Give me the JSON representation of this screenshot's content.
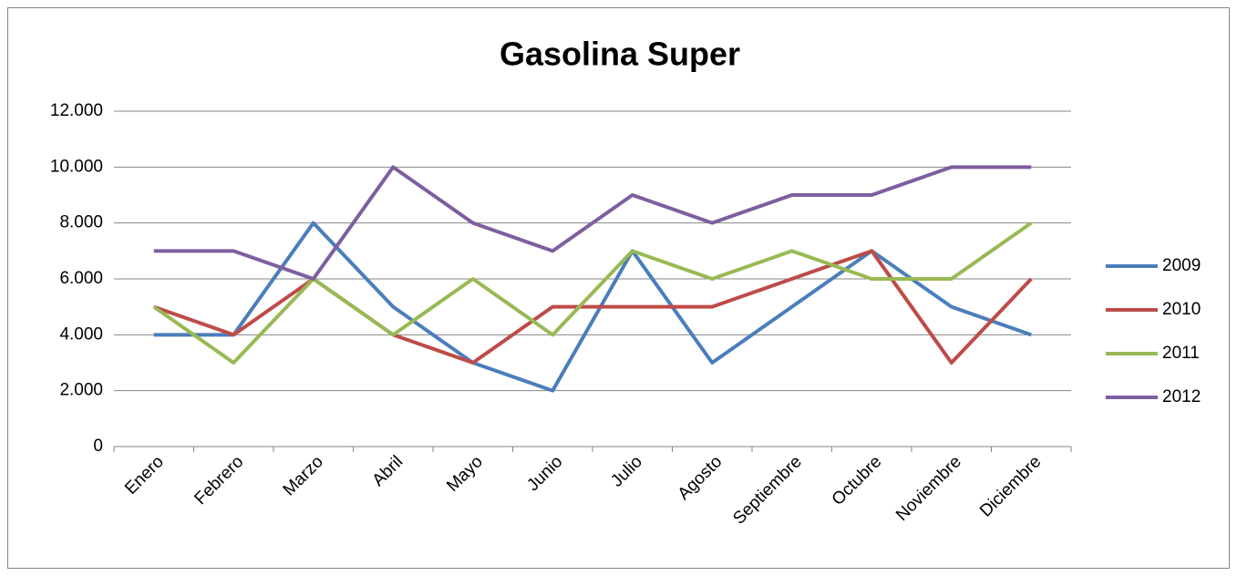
{
  "chart_data": {
    "type": "line",
    "title": "Gasolina Super",
    "categories": [
      "Enero",
      "Febrero",
      "Marzo",
      "Abril",
      "Mayo",
      "Junio",
      "Julio",
      "Agosto",
      "Septiembre",
      "Octubre",
      "Noviembre",
      "Diciembre"
    ],
    "series": [
      {
        "name": "2009",
        "color": "#4a7ebb",
        "values": [
          4000,
          4000,
          8000,
          5000,
          3000,
          2000,
          7000,
          3000,
          5000,
          7000,
          5000,
          4000
        ]
      },
      {
        "name": "2010",
        "color": "#be4b48",
        "values": [
          5000,
          4000,
          6000,
          4000,
          3000,
          5000,
          5000,
          5000,
          6000,
          7000,
          3000,
          6000
        ]
      },
      {
        "name": "2011",
        "color": "#98b954",
        "values": [
          5000,
          3000,
          6000,
          4000,
          6000,
          4000,
          7000,
          6000,
          7000,
          6000,
          6000,
          8000
        ]
      },
      {
        "name": "2012",
        "color": "#7d5fa0",
        "values": [
          7000,
          7000,
          6000,
          10000,
          8000,
          7000,
          9000,
          8000,
          9000,
          9000,
          10000,
          10000
        ]
      }
    ],
    "ylim": [
      0,
      12000
    ],
    "yticks": [
      0,
      {
        "value": 2000,
        "label": "2.000"
      },
      {
        "value": 4000,
        "label": "4.000"
      },
      {
        "value": 6000,
        "label": "6.000"
      },
      {
        "value": 8000,
        "label": "8.000"
      },
      {
        "value": 10000,
        "label": "10.000"
      },
      {
        "value": 12000,
        "label": "12.000"
      }
    ],
    "grid": true,
    "legend": "right"
  }
}
